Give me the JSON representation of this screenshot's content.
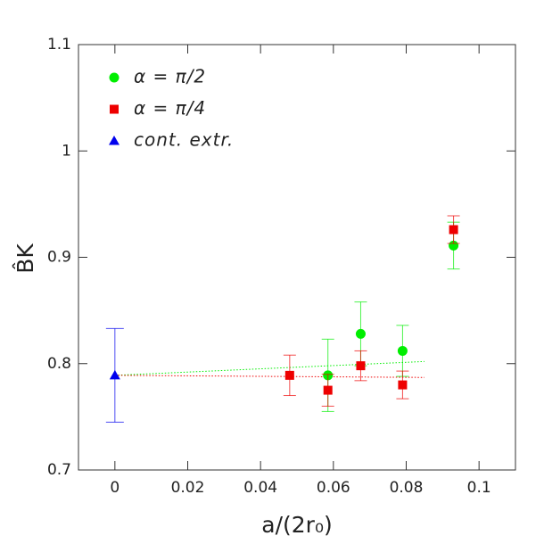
{
  "chart_data": {
    "type": "scatter",
    "xlabel": "a/(2r₀)",
    "ylabel": "B̂K",
    "xlim": [
      -0.01,
      0.11
    ],
    "ylim": [
      0.7,
      1.1
    ],
    "xticks": [
      0,
      0.02,
      0.04,
      0.06,
      0.08,
      0.1
    ],
    "yticks": [
      0.7,
      0.8,
      0.9,
      1,
      1.1
    ],
    "legend": "upper-left",
    "series": [
      {
        "name": "α = π/2",
        "color": "#00ee00",
        "marker": "circle",
        "x": [
          0.0585,
          0.0675,
          0.079,
          0.093
        ],
        "values": [
          0.789,
          0.828,
          0.812,
          0.911
        ],
        "errors": [
          0.034,
          0.03,
          0.024,
          0.022
        ]
      },
      {
        "name": "α = π/4",
        "color": "#ee0000",
        "marker": "square",
        "x": [
          0.048,
          0.0585,
          0.0675,
          0.079,
          0.093
        ],
        "values": [
          0.789,
          0.775,
          0.798,
          0.78,
          0.926
        ],
        "errors": [
          0.019,
          0.015,
          0.014,
          0.013,
          0.013
        ]
      },
      {
        "name": "cont. extr.",
        "color": "#0000ee",
        "marker": "triangle",
        "x": [
          0
        ],
        "values": [
          0.789
        ],
        "errors": [
          0.044
        ]
      }
    ],
    "fit_lines": [
      {
        "color": "#00ee00",
        "x": [
          0,
          0.085
        ],
        "values": [
          0.789,
          0.802
        ]
      },
      {
        "color": "#ee0000",
        "x": [
          0,
          0.085
        ],
        "values": [
          0.789,
          0.787
        ]
      }
    ]
  }
}
